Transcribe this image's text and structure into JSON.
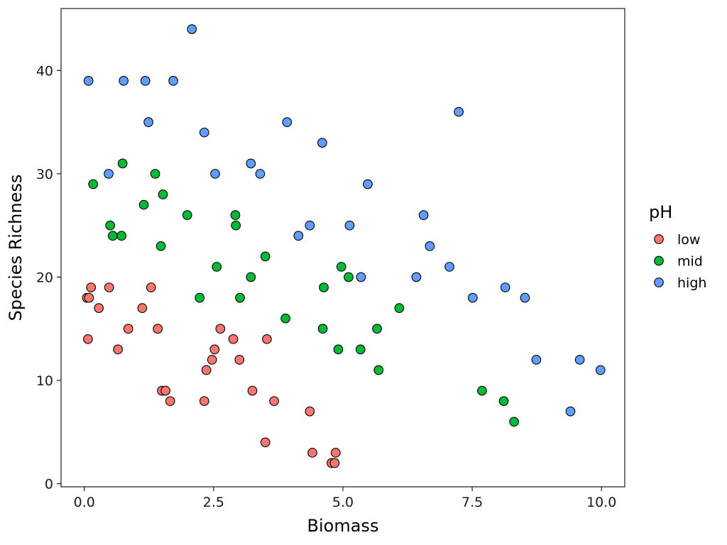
{
  "chart_data": {
    "type": "scatter",
    "xlabel": "Biomass",
    "ylabel": "Species Richness",
    "xlim": [
      -0.45,
      10.45
    ],
    "ylim": [
      -0.3,
      46.0
    ],
    "x_ticks": [
      0,
      2.5,
      5,
      7.5,
      10
    ],
    "x_tick_labels": [
      "0.0",
      "2.5",
      "5.0",
      "7.5",
      "10.0"
    ],
    "y_ticks": [
      0,
      10,
      20,
      30,
      40
    ],
    "y_tick_labels": [
      "0",
      "10",
      "20",
      "30",
      "40"
    ],
    "grid": false,
    "legend": {
      "title": "pH",
      "position": "right"
    },
    "series": [
      {
        "name": "low",
        "color": "#F8766D",
        "points": [
          [
            0.05,
            18
          ],
          [
            0.09,
            18
          ],
          [
            0.13,
            19
          ],
          [
            0.07,
            14
          ],
          [
            0.28,
            17
          ],
          [
            0.48,
            19
          ],
          [
            0.65,
            13
          ],
          [
            0.85,
            15
          ],
          [
            1.12,
            17
          ],
          [
            1.29,
            19
          ],
          [
            1.42,
            15
          ],
          [
            1.5,
            9
          ],
          [
            1.57,
            9
          ],
          [
            1.66,
            8
          ],
          [
            2.32,
            8
          ],
          [
            2.36,
            11
          ],
          [
            2.47,
            12
          ],
          [
            2.52,
            13
          ],
          [
            2.63,
            15
          ],
          [
            2.88,
            14
          ],
          [
            3.0,
            12
          ],
          [
            3.25,
            9
          ],
          [
            3.5,
            4
          ],
          [
            3.53,
            14
          ],
          [
            3.67,
            8
          ],
          [
            4.36,
            7
          ],
          [
            4.41,
            3
          ],
          [
            4.78,
            2
          ],
          [
            4.84,
            2
          ],
          [
            4.86,
            3
          ]
        ]
      },
      {
        "name": "mid",
        "color": "#00BA38",
        "points": [
          [
            0.17,
            29
          ],
          [
            0.5,
            25
          ],
          [
            0.55,
            24
          ],
          [
            0.72,
            24
          ],
          [
            0.74,
            31
          ],
          [
            1.15,
            27
          ],
          [
            1.37,
            30
          ],
          [
            1.48,
            23
          ],
          [
            1.52,
            28
          ],
          [
            1.99,
            26
          ],
          [
            2.23,
            18
          ],
          [
            2.56,
            21
          ],
          [
            2.92,
            26
          ],
          [
            2.93,
            25
          ],
          [
            3.01,
            18
          ],
          [
            3.22,
            20
          ],
          [
            3.5,
            22
          ],
          [
            3.89,
            16
          ],
          [
            4.61,
            15
          ],
          [
            4.63,
            19
          ],
          [
            4.91,
            13
          ],
          [
            4.97,
            21
          ],
          [
            5.11,
            20
          ],
          [
            5.34,
            13
          ],
          [
            5.66,
            15
          ],
          [
            5.69,
            11
          ],
          [
            6.09,
            17
          ],
          [
            7.69,
            9
          ],
          [
            8.11,
            8
          ],
          [
            8.31,
            6
          ]
        ]
      },
      {
        "name": "high",
        "color": "#619CFF",
        "points": [
          [
            0.08,
            39
          ],
          [
            0.47,
            30
          ],
          [
            0.76,
            39
          ],
          [
            1.18,
            39
          ],
          [
            1.24,
            35
          ],
          [
            1.72,
            39
          ],
          [
            2.08,
            44
          ],
          [
            2.32,
            34
          ],
          [
            2.53,
            30
          ],
          [
            3.22,
            31
          ],
          [
            3.4,
            30
          ],
          [
            3.92,
            35
          ],
          [
            4.14,
            24
          ],
          [
            4.36,
            25
          ],
          [
            4.6,
            33
          ],
          [
            5.13,
            25
          ],
          [
            5.35,
            20
          ],
          [
            5.48,
            29
          ],
          [
            6.42,
            20
          ],
          [
            6.56,
            26
          ],
          [
            6.68,
            23
          ],
          [
            7.06,
            21
          ],
          [
            7.24,
            36
          ],
          [
            7.51,
            18
          ],
          [
            8.14,
            19
          ],
          [
            8.52,
            18
          ],
          [
            8.74,
            12
          ],
          [
            9.4,
            7
          ],
          [
            9.58,
            12
          ],
          [
            9.98,
            11
          ]
        ]
      }
    ]
  }
}
